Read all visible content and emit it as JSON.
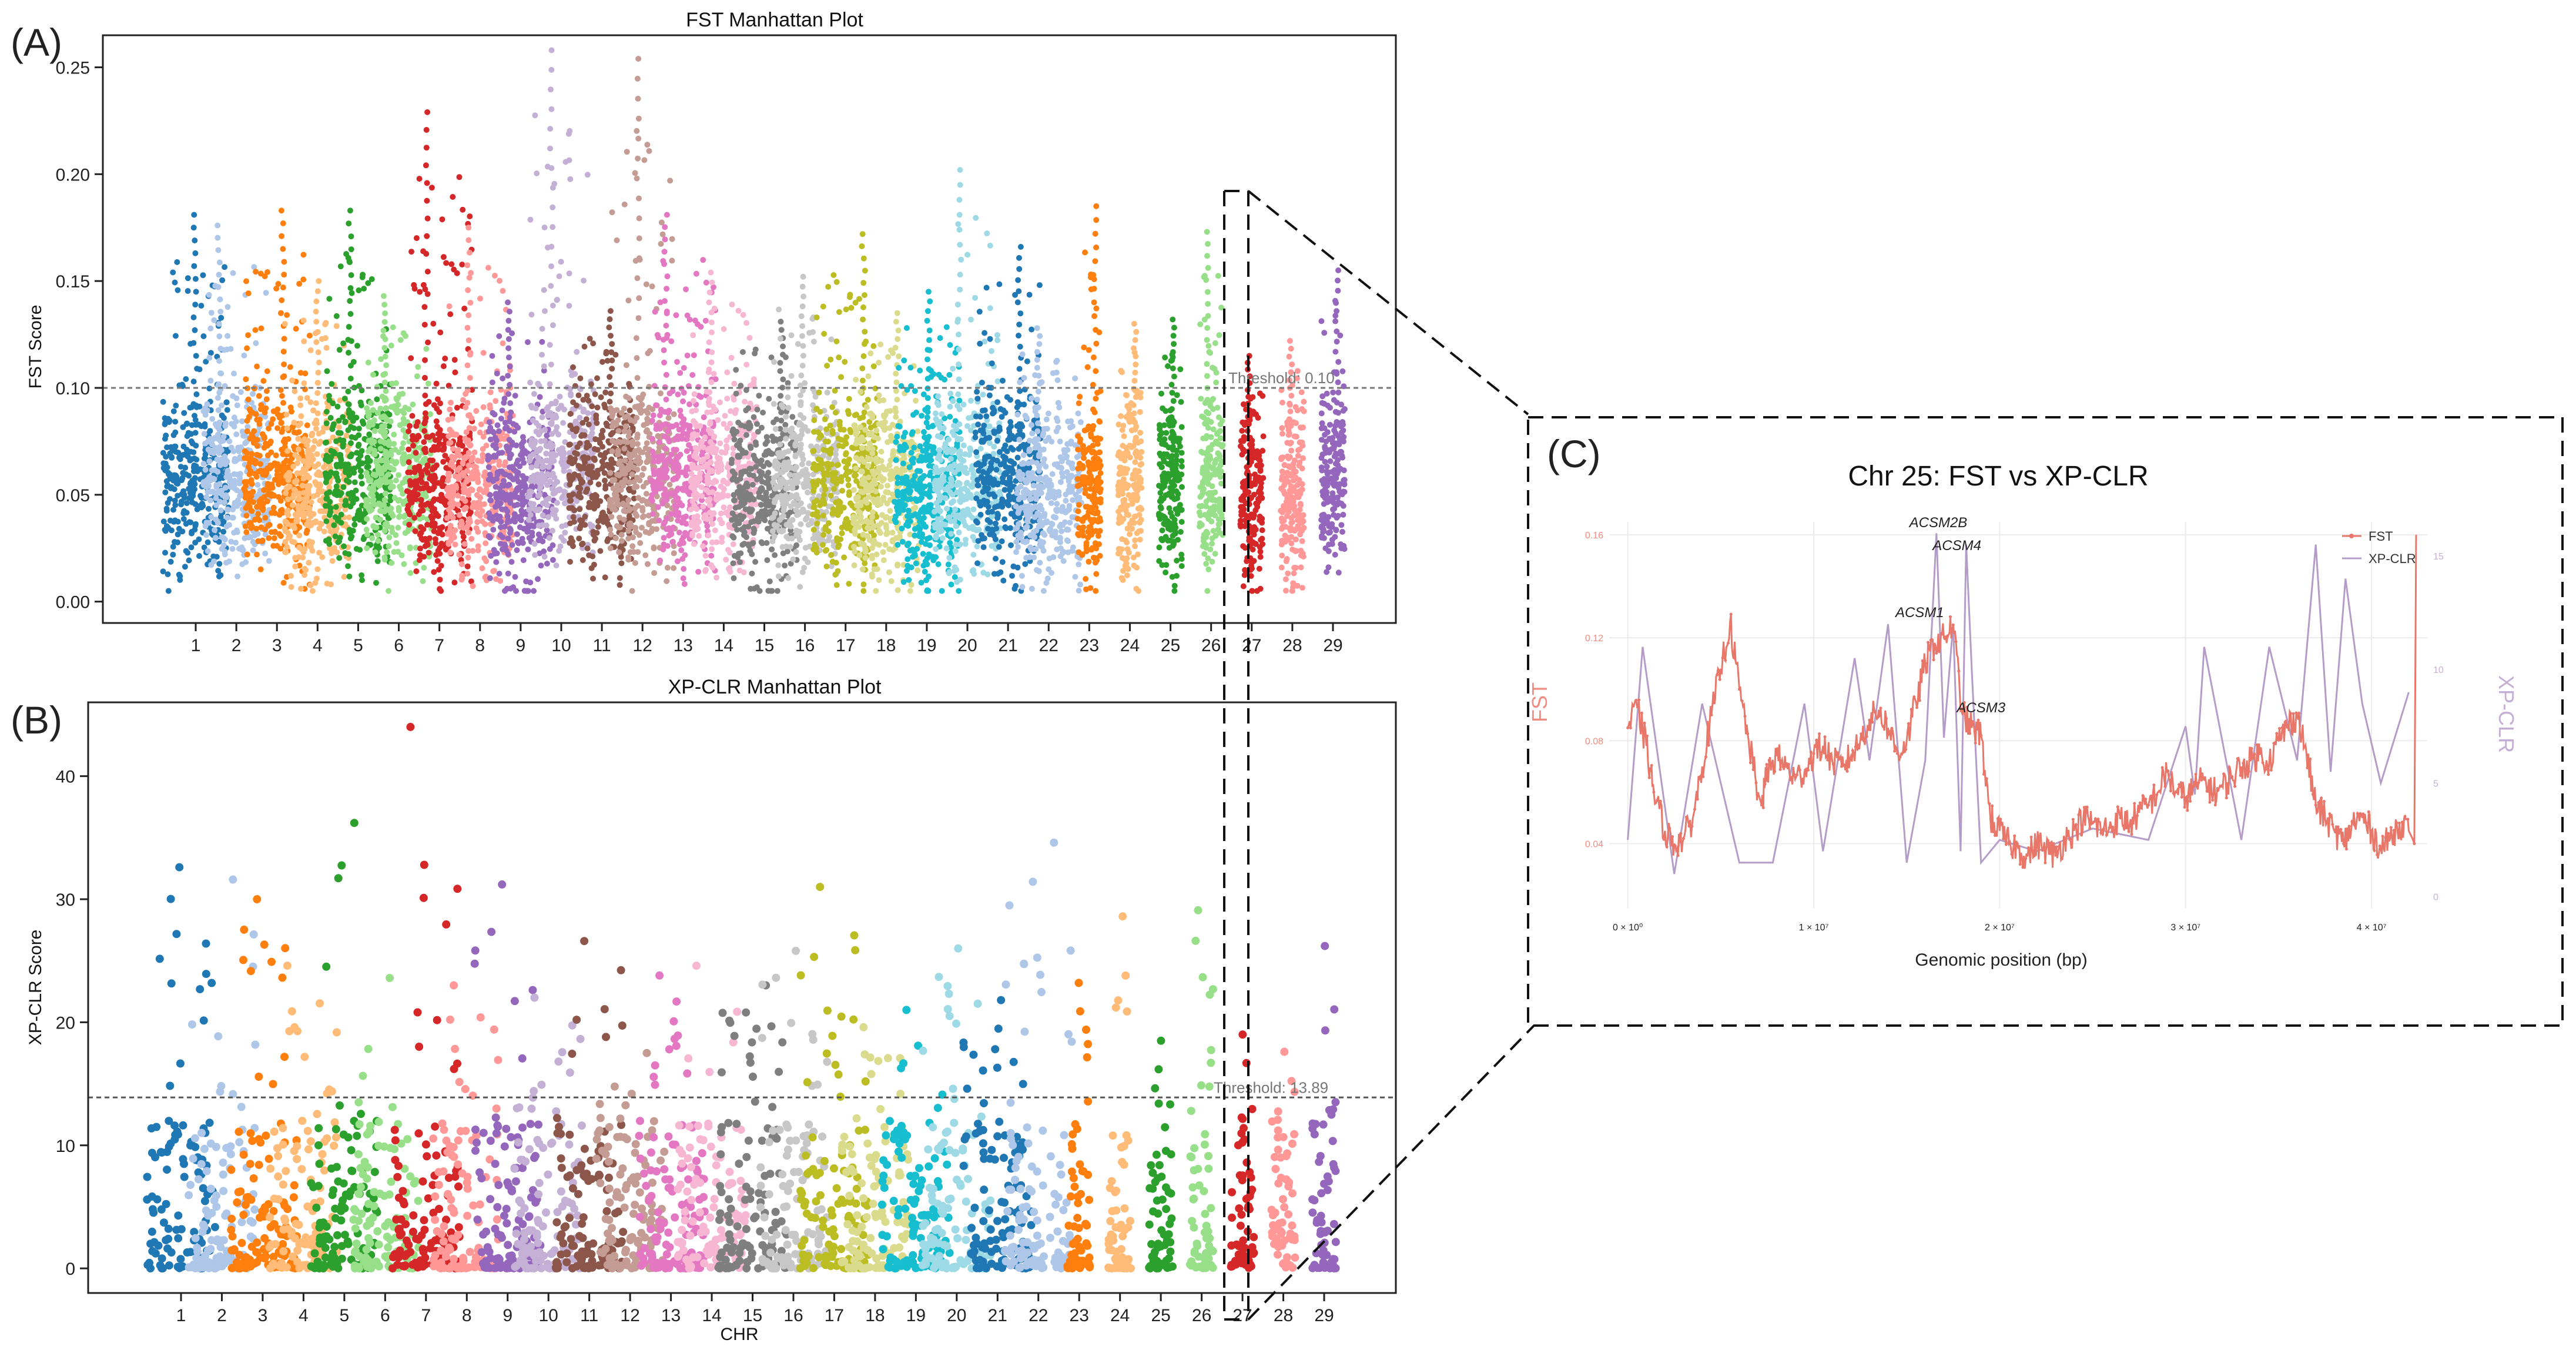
{
  "panel_labels": {
    "a": "(A)",
    "b": "(B)",
    "c": "(C)"
  },
  "colors": [
    "#1f77b4",
    "#aec7e8",
    "#ff7f0e",
    "#ffbb78",
    "#2ca02c",
    "#98df8a",
    "#d62728",
    "#ff9896",
    "#9467bd",
    "#c5b0d5",
    "#8c564b",
    "#c49c94",
    "#e377c2",
    "#f7b6d2",
    "#7f7f7f",
    "#c7c7c7",
    "#bcbd22",
    "#dbdb8d",
    "#17becf",
    "#9edae5",
    "#1f77b4",
    "#aec7e8",
    "#ff7f0e",
    "#ffbb78",
    "#2ca02c",
    "#98df8a",
    "#d62728",
    "#ff9896",
    "#9467bd"
  ],
  "chart_data": [
    {
      "type": "scatter",
      "title": "FST Manhattan Plot",
      "xlabel": "",
      "ylabel": "FST Score",
      "ylim": [
        -0.01,
        0.265
      ],
      "yticks": [
        "0.00",
        "0.05",
        "0.10",
        "0.15",
        "0.20",
        "0.25"
      ],
      "ytick_values": [
        0,
        0.05,
        0.1,
        0.15,
        0.2,
        0.25
      ],
      "categories": [
        "1",
        "2",
        "3",
        "4",
        "5",
        "6",
        "7",
        "8",
        "9",
        "10",
        "11",
        "12",
        "13",
        "14",
        "15",
        "16",
        "17",
        "18",
        "19",
        "20",
        "21",
        "22",
        "23",
        "24",
        "25",
        "26",
        "27",
        "28",
        "29"
      ],
      "threshold": 0.1,
      "threshold_label": "Threshold: 0.10",
      "chromosome_max": [
        0.181,
        0.176,
        0.183,
        0.15,
        0.183,
        0.143,
        0.229,
        0.175,
        0.14,
        0.258,
        0.136,
        0.254,
        0.181,
        0.154,
        0.131,
        0.152,
        0.172,
        0.135,
        0.145,
        0.202,
        0.166,
        0.128,
        0.185,
        0.13,
        0.132,
        0.173,
        0.115,
        0.122,
        0.155
      ],
      "chromosome_median": [
        0.055,
        0.055,
        0.057,
        0.05,
        0.056,
        0.058,
        0.055,
        0.052,
        0.05,
        0.065,
        0.055,
        0.058,
        0.06,
        0.056,
        0.05,
        0.055,
        0.052,
        0.05,
        0.05,
        0.055,
        0.057,
        0.05,
        0.05,
        0.05,
        0.052,
        0.055,
        0.048,
        0.045,
        0.055
      ]
    },
    {
      "type": "scatter",
      "title": "XP-CLR Manhattan Plot",
      "xlabel": "CHR",
      "ylabel": "XP-CLR Score",
      "ylim": [
        -2,
        46
      ],
      "yticks": [
        "0",
        "10",
        "20",
        "30",
        "40"
      ],
      "ytick_values": [
        0,
        10,
        20,
        30,
        40
      ],
      "categories": [
        "1",
        "2",
        "3",
        "4",
        "5",
        "6",
        "7",
        "8",
        "9",
        "10",
        "11",
        "12",
        "13",
        "14",
        "15",
        "16",
        "17",
        "18",
        "19",
        "20",
        "21",
        "22",
        "23",
        "24",
        "25",
        "26",
        "27",
        "28",
        "29"
      ],
      "threshold": 13.89,
      "threshold_label": "Threshold: 13.89",
      "chromosome_max": [
        32.6,
        31.6,
        30,
        24.6,
        36.2,
        23.6,
        44,
        23,
        31.2,
        22,
        26.6,
        17.5,
        23.8,
        24.6,
        23,
        25.8,
        31,
        19.6,
        21,
        26,
        21.8,
        34.6,
        23.2,
        28.6,
        18.5,
        29.1,
        19,
        17.6,
        26.2
      ]
    },
    {
      "type": "line",
      "title": "Chr 25: FST vs XP-CLR",
      "xlabel": "Genomic position (bp)",
      "ylabel_left": "FST",
      "ylabel_right": "XP-CLR",
      "xticks": [
        "0 × 10⁰",
        "1 × 10⁷",
        "2 × 10⁷",
        "3 × 10⁷",
        "4 × 10⁷"
      ],
      "xtick_values": [
        0,
        10000000,
        20000000,
        30000000,
        40000000
      ],
      "xlim": [
        -0.1,
        4.3
      ],
      "yticks_left": [
        "0.04",
        "0.08",
        "0.12",
        "0.16"
      ],
      "ytick_values_left": [
        0.04,
        0.08,
        0.12,
        0.16
      ],
      "ylim_left": [
        0.015,
        0.165
      ],
      "yticks_right": [
        "0",
        "5",
        "10",
        "15"
      ],
      "ytick_values_right": [
        0,
        5,
        10,
        15
      ],
      "ylim_right": [
        -0.5,
        16.5
      ],
      "legend": [
        "FST",
        "XP-CLR"
      ],
      "legend_position": "top-right",
      "annotations": [
        {
          "label": "ACSM2B",
          "x": 1.67,
          "y": 0.163
        },
        {
          "label": "ACSM4",
          "x": 1.77,
          "y": 0.154
        },
        {
          "label": "ACSM1",
          "x": 1.57,
          "y": 0.128
        },
        {
          "label": "ACSM3",
          "x": 1.9,
          "y": 0.091
        }
      ],
      "fst_series": {
        "x": [
          0.0,
          0.05,
          0.1,
          0.14,
          0.2,
          0.25,
          0.3,
          0.35,
          0.4,
          0.45,
          0.5,
          0.55,
          0.6,
          0.65,
          0.7,
          0.72,
          0.75,
          0.8,
          0.85,
          0.9,
          0.95,
          1.0,
          1.05,
          1.1,
          1.15,
          1.2,
          1.25,
          1.3,
          1.35,
          1.4,
          1.45,
          1.5,
          1.55,
          1.6,
          1.65,
          1.7,
          1.75,
          1.8,
          1.85,
          1.9,
          1.95,
          2.0,
          2.05,
          2.1,
          2.15,
          2.2,
          2.25,
          2.3,
          2.35,
          2.4,
          2.45,
          2.5,
          2.55,
          2.6,
          2.65,
          2.7,
          2.75,
          2.8,
          2.85,
          2.9,
          2.95,
          3.0,
          3.05,
          3.1,
          3.15,
          3.2,
          3.25,
          3.3,
          3.35,
          3.4,
          3.45,
          3.5,
          3.55,
          3.6,
          3.65,
          3.7,
          3.75,
          3.8,
          3.85,
          3.9,
          3.95,
          4.0,
          4.05,
          4.1,
          4.15,
          4.2,
          4.22,
          4.23,
          4.24
        ],
        "y": [
          0.085,
          0.093,
          0.078,
          0.06,
          0.045,
          0.04,
          0.042,
          0.05,
          0.07,
          0.09,
          0.108,
          0.126,
          0.1,
          0.08,
          0.06,
          0.055,
          0.068,
          0.074,
          0.07,
          0.065,
          0.068,
          0.075,
          0.078,
          0.072,
          0.07,
          0.074,
          0.08,
          0.088,
          0.092,
          0.085,
          0.075,
          0.08,
          0.095,
          0.11,
          0.118,
          0.12,
          0.125,
          0.09,
          0.085,
          0.082,
          0.05,
          0.045,
          0.04,
          0.038,
          0.035,
          0.04,
          0.038,
          0.035,
          0.042,
          0.045,
          0.05,
          0.048,
          0.045,
          0.047,
          0.05,
          0.048,
          0.052,
          0.055,
          0.06,
          0.068,
          0.06,
          0.058,
          0.062,
          0.065,
          0.06,
          0.062,
          0.066,
          0.07,
          0.072,
          0.075,
          0.072,
          0.08,
          0.086,
          0.09,
          0.075,
          0.055,
          0.05,
          0.045,
          0.04,
          0.048,
          0.05,
          0.045,
          0.038,
          0.042,
          0.048,
          0.045,
          0.042,
          0.04,
          0.16
        ]
      },
      "xpclr_series": {
        "x": [
          0.0,
          0.08,
          0.25,
          0.4,
          0.6,
          0.78,
          0.95,
          1.05,
          1.22,
          1.3,
          1.4,
          1.5,
          1.6,
          1.66,
          1.7,
          1.75,
          1.79,
          1.82,
          1.85,
          1.9,
          2.0,
          2.2,
          2.5,
          2.8,
          3.0,
          3.05,
          3.1,
          3.3,
          3.45,
          3.6,
          3.7,
          3.78,
          3.86,
          3.95,
          4.05,
          4.2
        ],
        "y": [
          2.5,
          11,
          1,
          8.5,
          1.5,
          1.5,
          8.5,
          2,
          10.5,
          6,
          12,
          1.5,
          6,
          16,
          7,
          12,
          2,
          15.5,
          10,
          1.5,
          2.5,
          2,
          3,
          2.5,
          7.5,
          4.5,
          11,
          2.5,
          11,
          6,
          15.5,
          5.5,
          14,
          8.5,
          5,
          9
        ]
      }
    }
  ]
}
